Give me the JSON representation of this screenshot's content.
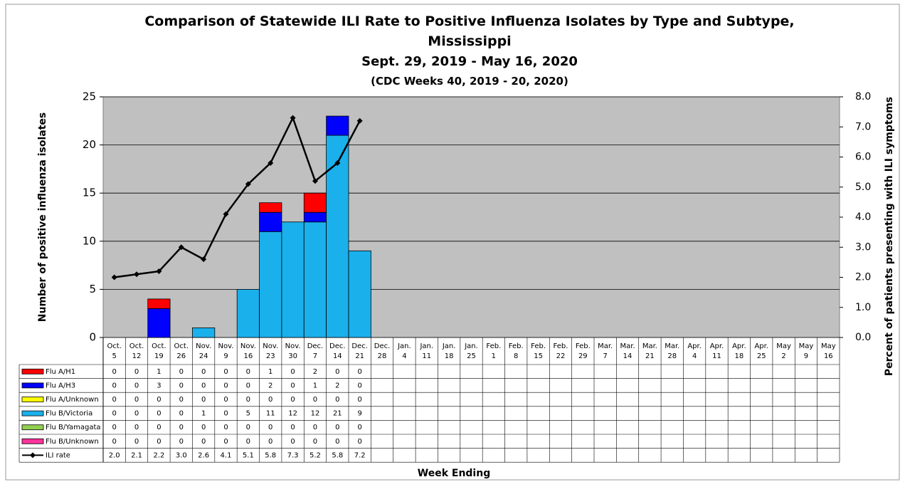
{
  "chart_data": {
    "type": "bar",
    "title": "Comparison of Statewide ILI Rate to Positive Influenza Isolates by Type and Subtype, Mississippi",
    "subtitle": [
      "Sept. 29, 2019 - May 16, 2020",
      "(CDC Weeks 40, 2019 - 20, 2020)"
    ],
    "y_label": "Number of positive influenza isolates",
    "y2_label": "Percent of patients presenting with ILI symptoms",
    "x_label": "Week Ending",
    "categories": [
      [
        "Oct.",
        "5"
      ],
      [
        "Oct.",
        "12"
      ],
      [
        "Oct.",
        "19"
      ],
      [
        "Oct.",
        "26"
      ],
      [
        "Nov.",
        "24"
      ],
      [
        "Nov.",
        "9"
      ],
      [
        "Nov.",
        "16"
      ],
      [
        "Nov.",
        "23"
      ],
      [
        "Nov.",
        "30"
      ],
      [
        "Dec.",
        "7"
      ],
      [
        "Dec.",
        "14"
      ],
      [
        "Dec.",
        "21"
      ],
      [
        "Dec.",
        "28"
      ],
      [
        "Jan.",
        "4"
      ],
      [
        "Jan.",
        "11"
      ],
      [
        "Jan.",
        "18"
      ],
      [
        "Jan.",
        "25"
      ],
      [
        "Feb.",
        "1"
      ],
      [
        "Feb.",
        "8"
      ],
      [
        "Feb.",
        "15"
      ],
      [
        "Feb.",
        "22"
      ],
      [
        "Feb.",
        "29"
      ],
      [
        "Mar.",
        "7"
      ],
      [
        "Mar.",
        "14"
      ],
      [
        "Mar.",
        "21"
      ],
      [
        "Mar.",
        "28"
      ],
      [
        "Apr.",
        "4"
      ],
      [
        "Apr.",
        "11"
      ],
      [
        "Apr.",
        "18"
      ],
      [
        "Apr.",
        "25"
      ],
      [
        "May",
        "2"
      ],
      [
        "May",
        "9"
      ],
      [
        "May",
        "16"
      ]
    ],
    "series": [
      {
        "name": "Flu A/H1",
        "color": "#ff0000",
        "values": [
          0,
          0,
          1,
          0,
          0,
          0,
          0,
          1,
          0,
          2,
          0,
          0,
          null,
          null,
          null,
          null,
          null,
          null,
          null,
          null,
          null,
          null,
          null,
          null,
          null,
          null,
          null,
          null,
          null,
          null,
          null,
          null,
          null
        ]
      },
      {
        "name": "Flu A/H3",
        "color": "#0000ff",
        "values": [
          0,
          0,
          3,
          0,
          0,
          0,
          0,
          2,
          0,
          1,
          2,
          0,
          null,
          null,
          null,
          null,
          null,
          null,
          null,
          null,
          null,
          null,
          null,
          null,
          null,
          null,
          null,
          null,
          null,
          null,
          null,
          null,
          null
        ]
      },
      {
        "name": "Flu A/Unknown",
        "color": "#ffff00",
        "values": [
          0,
          0,
          0,
          0,
          0,
          0,
          0,
          0,
          0,
          0,
          0,
          0,
          null,
          null,
          null,
          null,
          null,
          null,
          null,
          null,
          null,
          null,
          null,
          null,
          null,
          null,
          null,
          null,
          null,
          null,
          null,
          null,
          null
        ]
      },
      {
        "name": "Flu B/Victoria",
        "color": "#1ab0ec",
        "values": [
          0,
          0,
          0,
          0,
          1,
          0,
          5,
          11,
          12,
          12,
          21,
          9,
          null,
          null,
          null,
          null,
          null,
          null,
          null,
          null,
          null,
          null,
          null,
          null,
          null,
          null,
          null,
          null,
          null,
          null,
          null,
          null,
          null
        ]
      },
      {
        "name": "Flu B/Yamagata",
        "color": "#92d050",
        "values": [
          0,
          0,
          0,
          0,
          0,
          0,
          0,
          0,
          0,
          0,
          0,
          0,
          null,
          null,
          null,
          null,
          null,
          null,
          null,
          null,
          null,
          null,
          null,
          null,
          null,
          null,
          null,
          null,
          null,
          null,
          null,
          null,
          null
        ]
      },
      {
        "name": "Flu B/Unknown",
        "color": "#ff3399",
        "values": [
          0,
          0,
          0,
          0,
          0,
          0,
          0,
          0,
          0,
          0,
          0,
          0,
          null,
          null,
          null,
          null,
          null,
          null,
          null,
          null,
          null,
          null,
          null,
          null,
          null,
          null,
          null,
          null,
          null,
          null,
          null,
          null,
          null
        ]
      },
      {
        "name": "ILI rate",
        "color": "#000000",
        "axis": "y2",
        "type": "line",
        "values": [
          2.0,
          2.1,
          2.2,
          3.0,
          2.6,
          4.1,
          5.1,
          5.8,
          7.3,
          5.2,
          5.8,
          7.2,
          null,
          null,
          null,
          null,
          null,
          null,
          null,
          null,
          null,
          null,
          null,
          null,
          null,
          null,
          null,
          null,
          null,
          null,
          null,
          null,
          null
        ],
        "value_labels": [
          "2.0",
          "2.1",
          "2.2",
          "3.0",
          "2.6",
          "4.1",
          "5.1",
          "5.8",
          "7.3",
          "5.2",
          "5.8",
          "7.2",
          null,
          null,
          null,
          null,
          null,
          null,
          null,
          null,
          null,
          null,
          null,
          null,
          null,
          null,
          null,
          null,
          null,
          null,
          null,
          null,
          null
        ]
      }
    ],
    "stacked": true,
    "ylim": [
      0,
      25
    ],
    "yticks": [
      0,
      5,
      10,
      15,
      20,
      25
    ],
    "y2lim": [
      0,
      8
    ],
    "y2ticks": [
      {
        "value": 0,
        "label": "0.0"
      },
      {
        "value": 1,
        "label": "1.0"
      },
      {
        "value": 2,
        "label": "2.0"
      },
      {
        "value": 3,
        "label": "3.0"
      },
      {
        "value": 4,
        "label": "4.0"
      },
      {
        "value": 5,
        "label": "5.0"
      },
      {
        "value": 6,
        "label": "6.0"
      },
      {
        "value": 7,
        "label": "7.0"
      },
      {
        "value": 8,
        "label": "8.0"
      }
    ],
    "grid": true,
    "plot_background": "#c0c0c0"
  }
}
